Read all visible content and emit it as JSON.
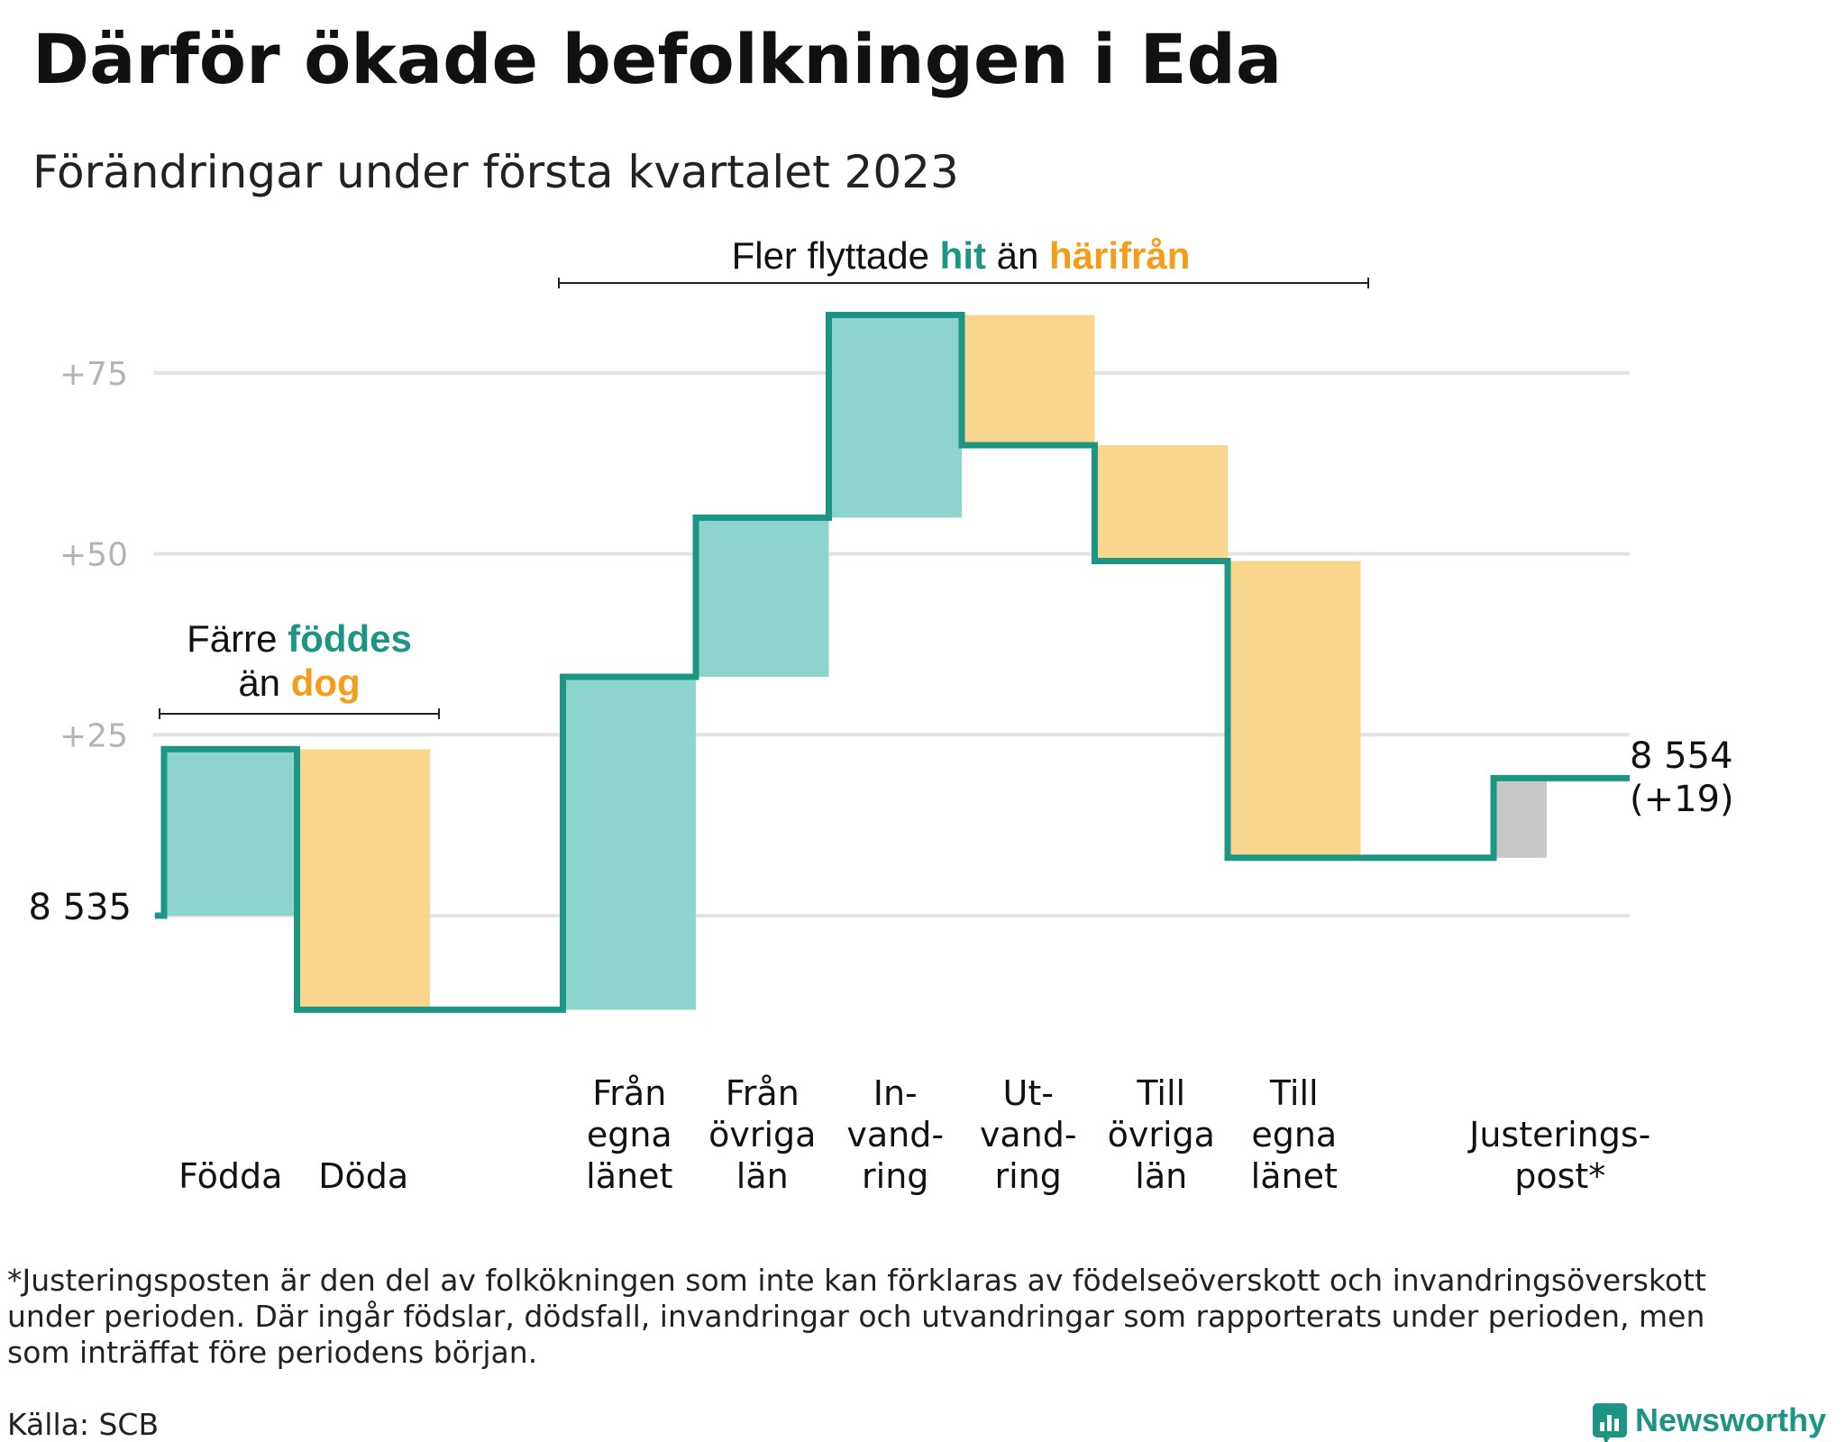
{
  "title": "Därför ökade befolkningen i Eda",
  "subtitle": "Förändringar under första kvartalet 2023",
  "colors": {
    "increase": "#8dd5cc",
    "decrease": "#fad58d",
    "adjustment": "#c8c8c8",
    "line": "#1c9585",
    "highlight_in": "#1c9585",
    "highlight_out": "#f39d1a",
    "grid": "#e3e3e3",
    "tick_text": "#b4b4b4"
  },
  "chart_data": {
    "type": "waterfall",
    "start_value": 8535,
    "start_label": "8 535",
    "end_label_value": "8 554",
    "end_label_change": "(+19)",
    "y_ticks": [
      {
        "value": 25,
        "label": "+25"
      },
      {
        "value": 50,
        "label": "+50"
      },
      {
        "value": 75,
        "label": "+75"
      }
    ],
    "ylim": [
      -25,
      110
    ],
    "steps": [
      {
        "label": [
          "Födda"
        ],
        "change": 23,
        "kind": "increase"
      },
      {
        "label": [
          "Döda"
        ],
        "change": -36,
        "kind": "decrease"
      },
      {
        "label": [],
        "change": 0,
        "kind": "gap"
      },
      {
        "label": [
          "Från",
          "egna",
          "länet"
        ],
        "change": 46,
        "kind": "increase"
      },
      {
        "label": [
          "Från",
          "övriga",
          "län"
        ],
        "change": 22,
        "kind": "increase"
      },
      {
        "label": [
          "In-",
          "vand-",
          "ring"
        ],
        "change": 28,
        "kind": "increase"
      },
      {
        "label": [
          "Ut-",
          "vand-",
          "ring"
        ],
        "change": -18,
        "kind": "decrease"
      },
      {
        "label": [
          "Till",
          "övriga",
          "län"
        ],
        "change": -16,
        "kind": "decrease"
      },
      {
        "label": [
          "Till",
          "egna",
          "länet"
        ],
        "change": -41,
        "kind": "decrease"
      },
      {
        "label": [],
        "change": 0,
        "kind": "gap"
      },
      {
        "label": [
          "Justerings-",
          "post*"
        ],
        "change": 11,
        "kind": "adjustment"
      }
    ],
    "annotations": {
      "births": {
        "line1": "Färre ",
        "line1_hl": "föddes",
        "line2": "än ",
        "line2_hl": "dog"
      },
      "migration": {
        "text1": "Fler flyttade ",
        "hl1": "hit",
        "text2": " än ",
        "hl2": "härifrån"
      }
    }
  },
  "footnote": [
    "*Justeringsposten är den del av folkökningen som inte kan förklaras av födelseöverskott och invandringsöverskott",
    "under perioden. Där ingår födslar, dödsfall, invandringar och utvandringar som rapporterats under perioden, men",
    "som inträffat före periodens början."
  ],
  "source": "Källa: SCB",
  "brand": "Newsworthy"
}
